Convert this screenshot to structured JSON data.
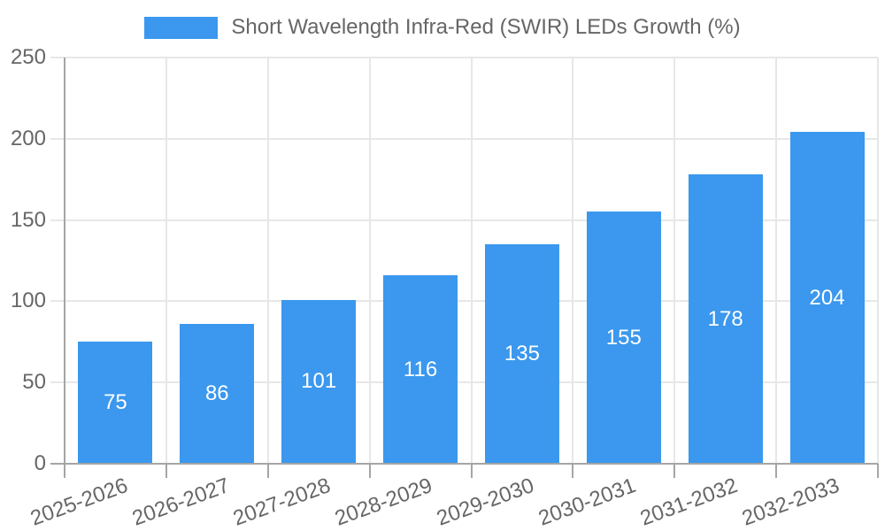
{
  "legend": {
    "label": "Short Wavelength Infra-Red (SWIR) LEDs Growth (%)"
  },
  "colors": {
    "bar": "#3B98EE",
    "grid": "#E7E7E7",
    "axis": "#A5A5A5",
    "tick_text": "#666666",
    "value_text": "#FFFFFF",
    "background": "#FFFFFF"
  },
  "chart_data": {
    "type": "bar",
    "title": "Short Wavelength Infra-Red (SWIR) LEDs Growth (%)",
    "categories": [
      "2025-2026",
      "2026-2027",
      "2027-2028",
      "2028-2029",
      "2029-2030",
      "2030-2031",
      "2031-2032",
      "2032-2033"
    ],
    "values": [
      75,
      86,
      101,
      116,
      135,
      155,
      178,
      204
    ],
    "xlabel": "",
    "ylabel": "",
    "ylim": [
      0,
      250
    ],
    "yticks": [
      0,
      50,
      100,
      150,
      200,
      250
    ],
    "grid": true,
    "legend_position": "top",
    "value_labels": "inside-center",
    "x_tick_rotation": -20
  }
}
